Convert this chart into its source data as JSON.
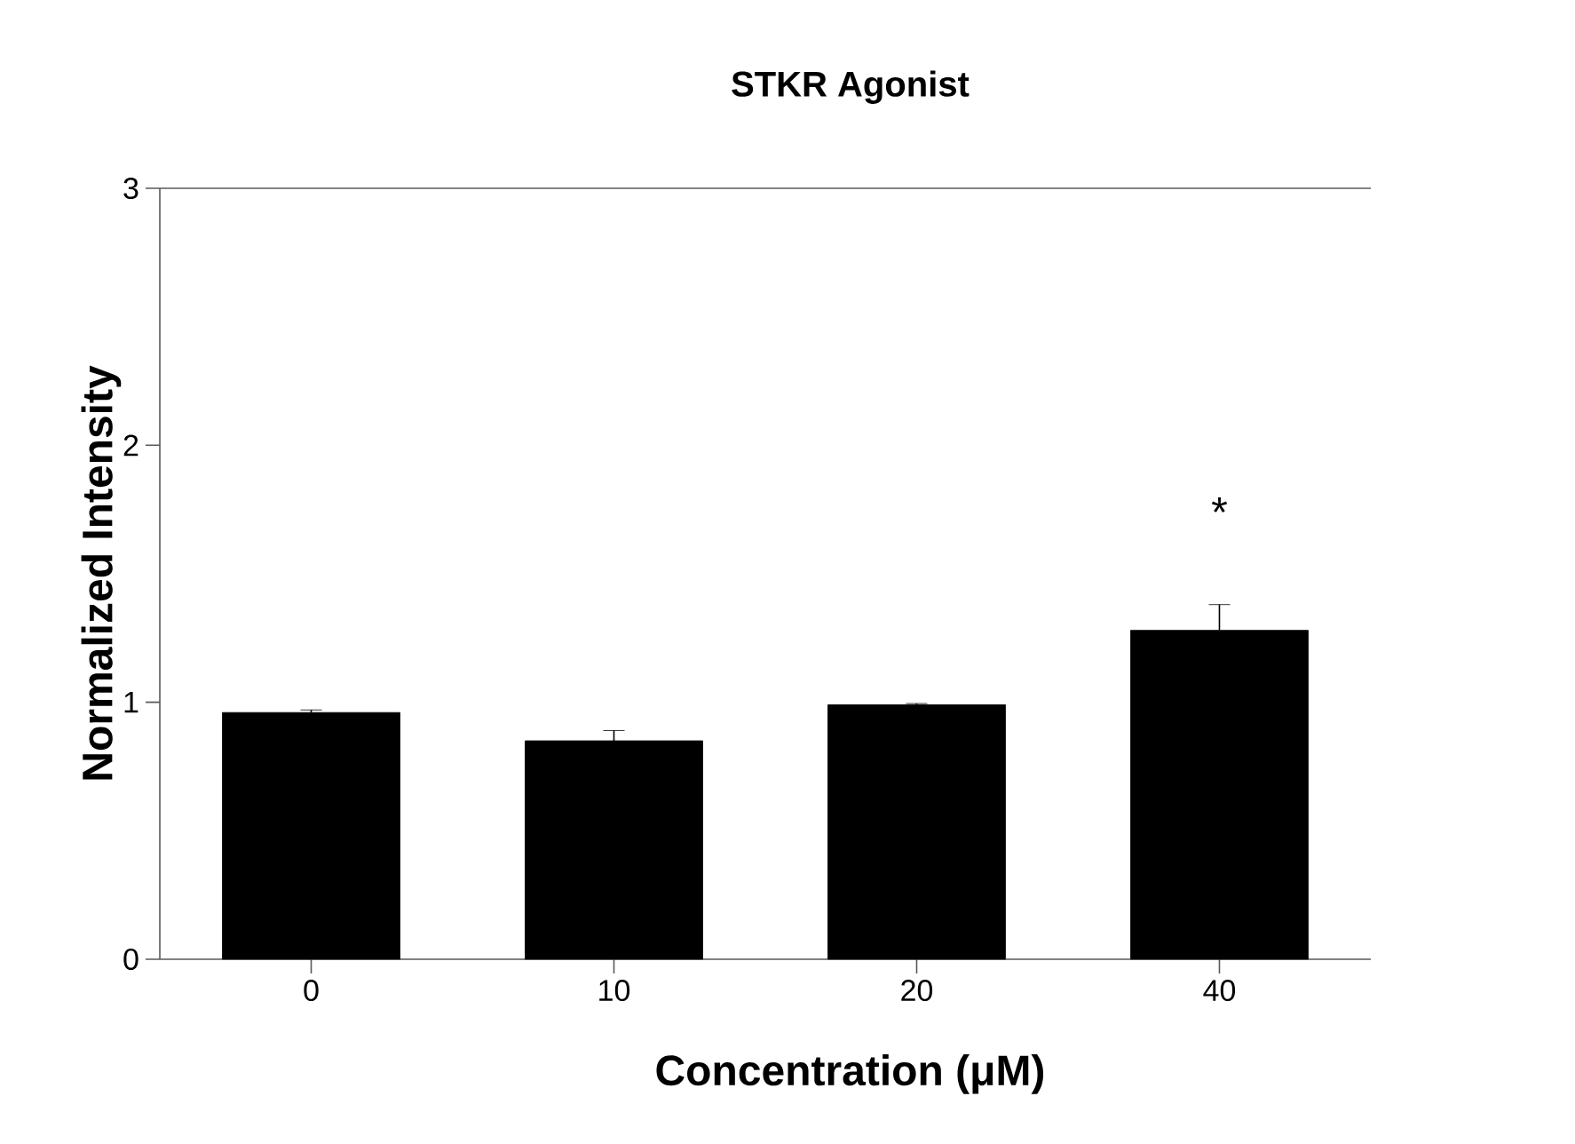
{
  "chart_data": {
    "type": "bar",
    "title": "STKR Agonist",
    "xlabel": "Concentration (μM)",
    "ylabel": "Normalized Intensity",
    "categories": [
      "0",
      "10",
      "20",
      "40"
    ],
    "values": [
      0.96,
      0.85,
      0.99,
      1.28
    ],
    "errors": [
      0.01,
      0.04,
      0.005,
      0.1
    ],
    "color": "#000000",
    "ylim": [
      0,
      3
    ],
    "yticks": [
      0,
      1,
      2,
      3
    ],
    "annotations": [
      "*"
    ]
  }
}
